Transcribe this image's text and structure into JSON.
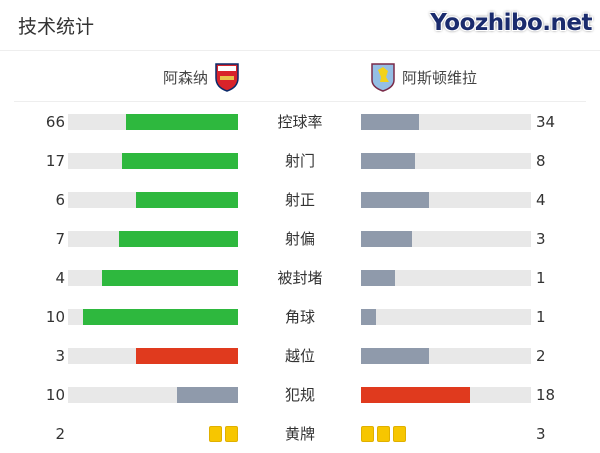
{
  "title": "技术统计",
  "home": {
    "name": "阿森纳",
    "badge": "arsenal-crest-icon"
  },
  "away": {
    "name": "阿斯顿维拉",
    "badge": "aston-villa-crest-icon"
  },
  "colors": {
    "green": "#2eb83e",
    "gray": "#8f9aab",
    "red": "#e03a1e",
    "track": "#e8e8e8",
    "yellow": "#f7c600"
  },
  "stats": [
    {
      "label": "控球率",
      "home": 66,
      "away": 34,
      "home_color": "green",
      "away_color": "gray"
    },
    {
      "label": "射门",
      "home": 17,
      "away": 8,
      "home_color": "green",
      "away_color": "gray"
    },
    {
      "label": "射正",
      "home": 6,
      "away": 4,
      "home_color": "green",
      "away_color": "gray"
    },
    {
      "label": "射偏",
      "home": 7,
      "away": 3,
      "home_color": "green",
      "away_color": "gray"
    },
    {
      "label": "被封堵",
      "home": 4,
      "away": 1,
      "home_color": "green",
      "away_color": "gray"
    },
    {
      "label": "角球",
      "home": 10,
      "away": 1,
      "home_color": "green",
      "away_color": "gray"
    },
    {
      "label": "越位",
      "home": 3,
      "away": 2,
      "home_color": "red",
      "away_color": "gray"
    },
    {
      "label": "犯规",
      "home": 10,
      "away": 18,
      "home_color": "gray",
      "away_color": "red"
    }
  ],
  "yellow_cards": {
    "label": "黄牌",
    "home": 2,
    "away": 3
  },
  "watermark": "Yoozhibo.net"
}
